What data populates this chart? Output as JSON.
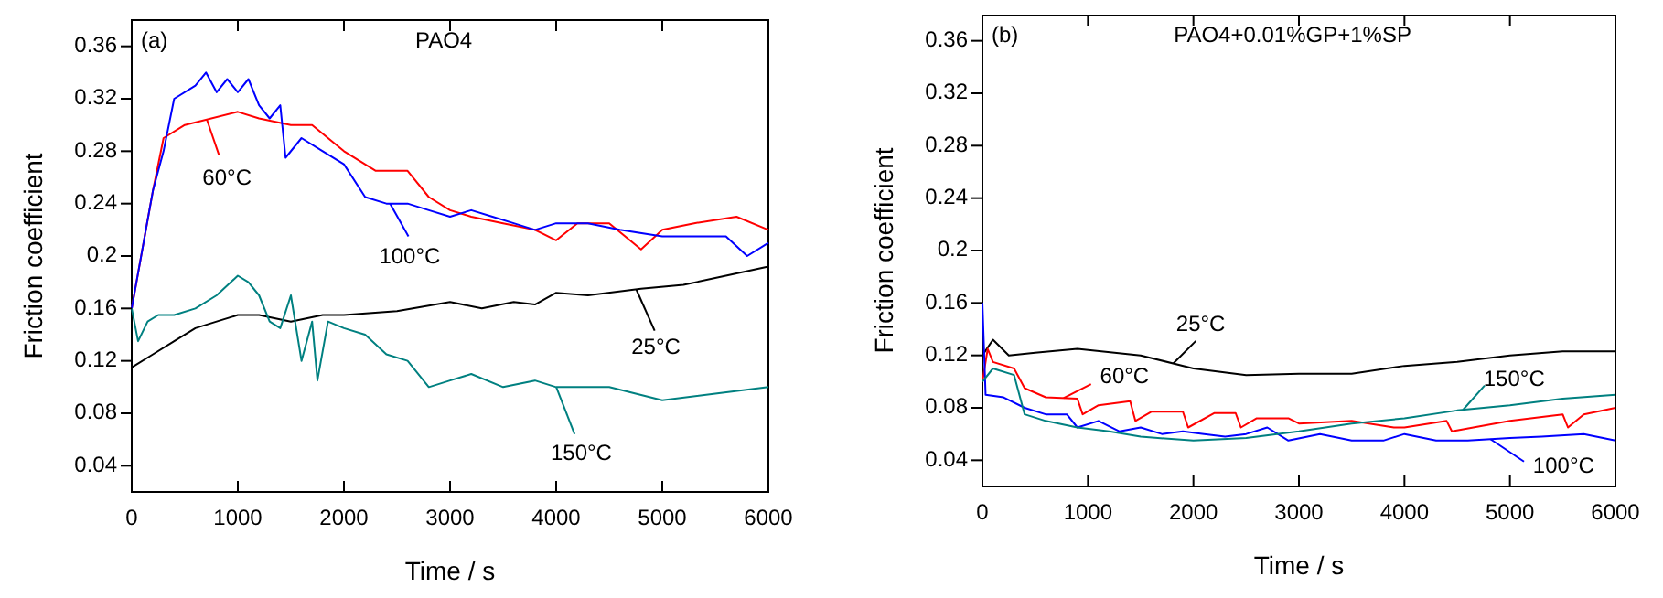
{
  "chart_data": [
    {
      "type": "line",
      "title": "PAO4",
      "legend": "center",
      "annotations": [
        "(a)"
      ],
      "xlabel": "Time / s",
      "ylabel": "Friction coefficient",
      "xlim": [
        0,
        6000
      ],
      "ylim": [
        0.02,
        0.38
      ],
      "xticks": [
        0,
        1000,
        2000,
        3000,
        4000,
        5000,
        6000
      ],
      "yticks": [
        0.04,
        0.08,
        0.12,
        0.16,
        0.2,
        0.24,
        0.28,
        0.32,
        0.36
      ],
      "series": [
        {
          "name": "60°C",
          "color": "#ff0000",
          "x": [
            0,
            200,
            300,
            500,
            1000,
            1200,
            1500,
            1700,
            2000,
            2300,
            2600,
            2800,
            3000,
            3200,
            3500,
            3800,
            4000,
            4200,
            4500,
            4800,
            5000,
            5300,
            5700,
            6000
          ],
          "values": [
            0.16,
            0.25,
            0.29,
            0.3,
            0.31,
            0.305,
            0.3,
            0.3,
            0.28,
            0.265,
            0.265,
            0.245,
            0.235,
            0.23,
            0.225,
            0.22,
            0.212,
            0.225,
            0.225,
            0.205,
            0.22,
            0.225,
            0.23,
            0.22
          ]
        },
        {
          "name": "100°C",
          "color": "#0000ff",
          "x": [
            0,
            200,
            300,
            400,
            600,
            700,
            800,
            900,
            1000,
            1100,
            1200,
            1300,
            1400,
            1450,
            1600,
            1800,
            2000,
            2200,
            2400,
            2600,
            2800,
            3000,
            3200,
            3400,
            3600,
            3800,
            4000,
            4300,
            4600,
            5000,
            5300,
            5600,
            5800,
            6000
          ],
          "values": [
            0.16,
            0.25,
            0.28,
            0.32,
            0.33,
            0.34,
            0.325,
            0.335,
            0.325,
            0.335,
            0.315,
            0.305,
            0.315,
            0.275,
            0.29,
            0.28,
            0.27,
            0.245,
            0.24,
            0.24,
            0.235,
            0.23,
            0.235,
            0.23,
            0.225,
            0.22,
            0.225,
            0.225,
            0.22,
            0.215,
            0.215,
            0.215,
            0.2,
            0.21
          ]
        },
        {
          "name": "25°C",
          "color": "#000000",
          "x": [
            0,
            200,
            400,
            600,
            800,
            1000,
            1200,
            1500,
            1800,
            2000,
            2500,
            3000,
            3300,
            3600,
            3800,
            4000,
            4300,
            4800,
            5200,
            5600,
            6000
          ],
          "values": [
            0.115,
            0.125,
            0.135,
            0.145,
            0.15,
            0.155,
            0.155,
            0.15,
            0.155,
            0.155,
            0.158,
            0.165,
            0.16,
            0.165,
            0.163,
            0.172,
            0.17,
            0.175,
            0.178,
            0.185,
            0.192
          ]
        },
        {
          "name": "150°C",
          "color": "#008080",
          "x": [
            0,
            60,
            150,
            250,
            400,
            600,
            800,
            1000,
            1100,
            1200,
            1300,
            1400,
            1500,
            1600,
            1700,
            1750,
            1850,
            2000,
            2200,
            2400,
            2600,
            2800,
            3000,
            3200,
            3500,
            3800,
            4000,
            4500,
            5000,
            5500,
            6000
          ],
          "values": [
            0.16,
            0.135,
            0.15,
            0.155,
            0.155,
            0.16,
            0.17,
            0.185,
            0.18,
            0.17,
            0.15,
            0.145,
            0.17,
            0.12,
            0.15,
            0.105,
            0.15,
            0.145,
            0.14,
            0.125,
            0.12,
            0.1,
            0.105,
            0.11,
            0.1,
            0.105,
            0.1,
            0.1,
            0.09,
            0.095,
            0.1
          ]
        }
      ]
    },
    {
      "type": "line",
      "title": "PAO4+0.01%GP+1%SP",
      "legend": "bottom",
      "annotations": [
        "(b)"
      ],
      "xlabel": "Time / s",
      "ylabel": "Friction coefficient",
      "xlim": [
        0,
        6000
      ],
      "ylim": [
        0.02,
        0.38
      ],
      "xticks": [
        0,
        1000,
        2000,
        3000,
        4000,
        5000,
        6000
      ],
      "yticks": [
        0.04,
        0.08,
        0.12,
        0.16,
        0.2,
        0.24,
        0.28,
        0.32,
        0.36
      ],
      "series": [
        {
          "name": "25°C",
          "color": "#000000",
          "x": [
            0,
            100,
            250,
            500,
            900,
            1500,
            2000,
            2500,
            3000,
            3500,
            4000,
            4500,
            5000,
            5500,
            6000
          ],
          "values": [
            0.12,
            0.132,
            0.12,
            0.122,
            0.125,
            0.12,
            0.11,
            0.105,
            0.106,
            0.106,
            0.112,
            0.115,
            0.12,
            0.123,
            0.123
          ]
        },
        {
          "name": "60°C",
          "color": "#ff0000",
          "x": [
            0,
            50,
            100,
            300,
            400,
            600,
            900,
            950,
            1100,
            1400,
            1450,
            1600,
            1900,
            1950,
            2200,
            2400,
            2450,
            2600,
            2900,
            3000,
            3500,
            3900,
            4000,
            4400,
            4450,
            5000,
            5500,
            5550,
            5700,
            6000
          ],
          "values": [
            0.1,
            0.125,
            0.115,
            0.11,
            0.095,
            0.088,
            0.087,
            0.075,
            0.082,
            0.085,
            0.07,
            0.077,
            0.077,
            0.065,
            0.076,
            0.076,
            0.065,
            0.072,
            0.072,
            0.068,
            0.07,
            0.065,
            0.065,
            0.07,
            0.062,
            0.07,
            0.075,
            0.065,
            0.075,
            0.08
          ]
        },
        {
          "name": "100°C",
          "color": "#0000ff",
          "x": [
            0,
            30,
            200,
            400,
            600,
            800,
            900,
            1100,
            1300,
            1500,
            1700,
            1900,
            2100,
            2300,
            2500,
            2700,
            2900,
            3200,
            3500,
            3800,
            4000,
            4300,
            4600,
            5000,
            5300,
            5700,
            6000
          ],
          "values": [
            0.16,
            0.09,
            0.088,
            0.08,
            0.075,
            0.075,
            0.065,
            0.07,
            0.062,
            0.065,
            0.06,
            0.062,
            0.06,
            0.058,
            0.06,
            0.065,
            0.055,
            0.06,
            0.055,
            0.055,
            0.06,
            0.055,
            0.055,
            0.057,
            0.058,
            0.06,
            0.055
          ]
        },
        {
          "name": "150°C",
          "color": "#008080",
          "x": [
            0,
            100,
            300,
            400,
            600,
            900,
            1200,
            1500,
            2000,
            2500,
            3000,
            3500,
            4000,
            4500,
            5000,
            5500,
            6000
          ],
          "values": [
            0.1,
            0.11,
            0.105,
            0.075,
            0.07,
            0.065,
            0.062,
            0.058,
            0.055,
            0.057,
            0.062,
            0.068,
            0.072,
            0.078,
            0.082,
            0.087,
            0.09
          ]
        }
      ]
    }
  ]
}
